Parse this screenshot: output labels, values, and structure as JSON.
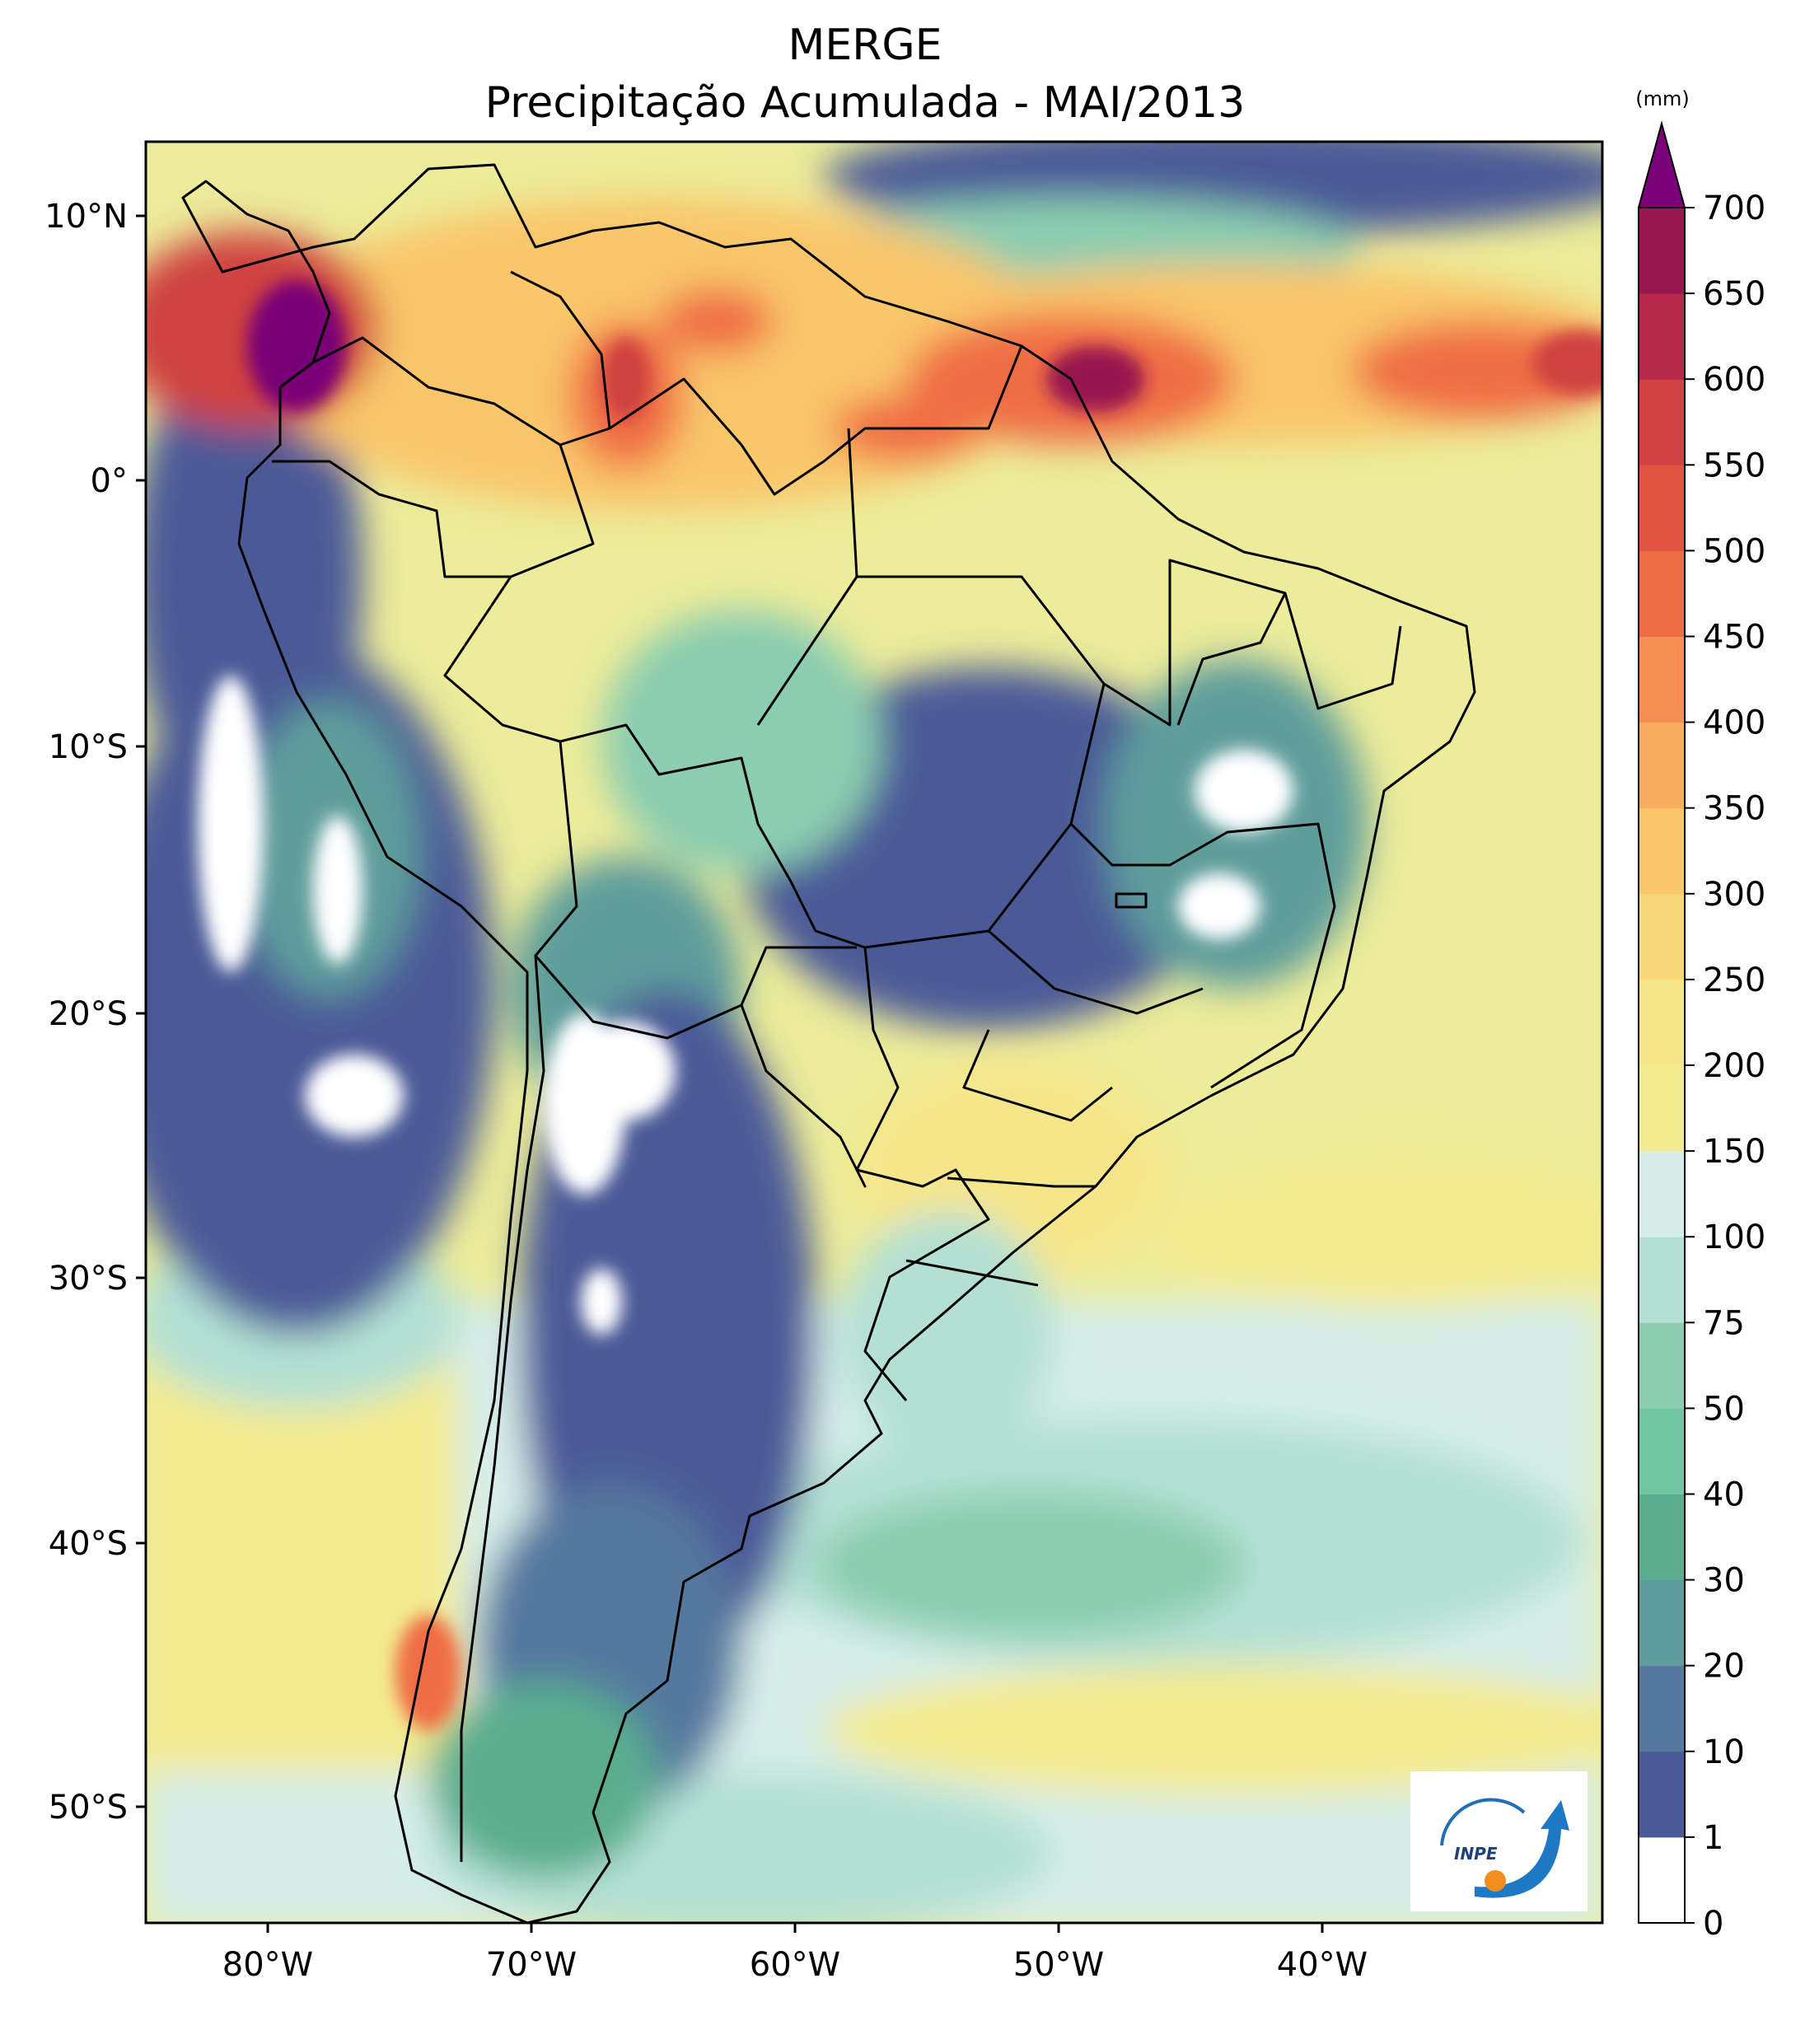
{
  "title": {
    "line1": "MERGE",
    "line2": "Precipitação Acumulada - MAI/2013"
  },
  "map": {
    "lon_labels": [
      "80°W",
      "70°W",
      "60°W",
      "50°W",
      "40°W"
    ],
    "lat_labels": [
      "10°N",
      "0°",
      "10°S",
      "20°S",
      "30°S",
      "40°S",
      "50°S"
    ]
  },
  "colorbar": {
    "unit": "(mm)",
    "ticks": [
      "0",
      "1",
      "10",
      "20",
      "30",
      "40",
      "50",
      "75",
      "100",
      "150",
      "200",
      "250",
      "300",
      "350",
      "400",
      "450",
      "500",
      "550",
      "600",
      "650",
      "700"
    ],
    "colors": [
      "#ffffff",
      "#4b5a97",
      "#55789e",
      "#5e9d9b",
      "#5aad8f",
      "#6fc6a0",
      "#8ccdb0",
      "#b4e0d4",
      "#d7eeea",
      "#f3eb8f",
      "#f6e68a",
      "#f7d879",
      "#f9c66b",
      "#f8ad61",
      "#f58f52",
      "#ef6d45",
      "#e0553f",
      "#cf4241",
      "#b6294a",
      "#98174f"
    ],
    "extend_color": "#7a0177"
  },
  "logo": {
    "text": "INPE"
  }
}
